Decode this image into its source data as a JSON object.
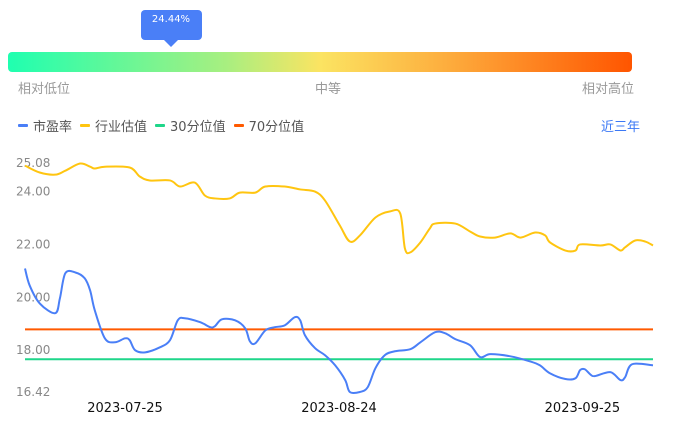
{
  "percentile": {
    "label": "24.44%",
    "value": 24.44,
    "levels": [
      "相对低位",
      "中等",
      "相对高位"
    ]
  },
  "range_button": "近三年",
  "colors": {
    "pe": "#4a7ff7",
    "industry": "#ffc510",
    "p30": "#1fd68a",
    "p70": "#ff5a00"
  },
  "chart_data": {
    "type": "line",
    "legend": [
      "市盈率",
      "行业估值",
      "30分位值",
      "70分位值"
    ],
    "legend_position": "top-left",
    "x_unit": "days since start",
    "xlim": [
      0,
      81
    ],
    "ylim": [
      16.42,
      25.08
    ],
    "y_ticks": [
      "25.08",
      "24.00",
      "22.00",
      "20.00",
      "18.00",
      "16.42"
    ],
    "y_tick_values": [
      25.08,
      24,
      22,
      20,
      18,
      16.42
    ],
    "x_ticks": [
      {
        "label": "2023-07-25",
        "x": 12.9
      },
      {
        "label": "2023-08-24",
        "x": 40.5
      },
      {
        "label": "2023-09-25",
        "x": 71.9
      }
    ],
    "series": [
      {
        "name": "市盈率",
        "points": [
          [
            0,
            21.09
          ],
          [
            0.6,
            20.45
          ],
          [
            1.9,
            19.77
          ],
          [
            3.9,
            19.4
          ],
          [
            4.5,
            19.96
          ],
          [
            5.2,
            20.91
          ],
          [
            6.5,
            20.94
          ],
          [
            7.7,
            20.72
          ],
          [
            8.4,
            20.26
          ],
          [
            9.0,
            19.51
          ],
          [
            10.3,
            18.45
          ],
          [
            11.6,
            18.3
          ],
          [
            12.9,
            18.45
          ],
          [
            13.5,
            18.38
          ],
          [
            14.2,
            18.0
          ],
          [
            15.5,
            17.92
          ],
          [
            17.4,
            18.11
          ],
          [
            18.7,
            18.38
          ],
          [
            19.7,
            19.13
          ],
          [
            20.6,
            19.21
          ],
          [
            22.6,
            19.06
          ],
          [
            23.9,
            18.87
          ],
          [
            24.5,
            18.91
          ],
          [
            25.4,
            19.17
          ],
          [
            27.1,
            19.13
          ],
          [
            28.4,
            18.83
          ],
          [
            29.0,
            18.34
          ],
          [
            29.7,
            18.26
          ],
          [
            31.0,
            18.75
          ],
          [
            32.2,
            18.87
          ],
          [
            33.5,
            18.94
          ],
          [
            34.8,
            19.25
          ],
          [
            35.5,
            19.13
          ],
          [
            36.1,
            18.57
          ],
          [
            37.4,
            18.08
          ],
          [
            38.7,
            17.81
          ],
          [
            40.0,
            17.43
          ],
          [
            41.3,
            16.87
          ],
          [
            41.9,
            16.42
          ],
          [
            43.2,
            16.42
          ],
          [
            44.2,
            16.6
          ],
          [
            45.2,
            17.32
          ],
          [
            46.4,
            17.81
          ],
          [
            47.7,
            17.96
          ],
          [
            49.7,
            18.04
          ],
          [
            51.0,
            18.3
          ],
          [
            52.9,
            18.68
          ],
          [
            54.2,
            18.64
          ],
          [
            55.5,
            18.42
          ],
          [
            57.4,
            18.19
          ],
          [
            58.7,
            17.74
          ],
          [
            60.0,
            17.85
          ],
          [
            62.6,
            17.77
          ],
          [
            65.1,
            17.58
          ],
          [
            66.4,
            17.43
          ],
          [
            67.7,
            17.13
          ],
          [
            69.7,
            16.91
          ],
          [
            71.0,
            16.94
          ],
          [
            71.6,
            17.25
          ],
          [
            72.2,
            17.28
          ],
          [
            72.9,
            17.09
          ],
          [
            73.5,
            17.02
          ],
          [
            75.5,
            17.17
          ],
          [
            76.8,
            16.87
          ],
          [
            77.4,
            16.98
          ],
          [
            78.3,
            17.47
          ],
          [
            81.0,
            17.43
          ]
        ]
      },
      {
        "name": "行业估值",
        "points": [
          [
            0,
            24.98
          ],
          [
            1.9,
            24.72
          ],
          [
            3.9,
            24.64
          ],
          [
            5.2,
            24.79
          ],
          [
            7.1,
            25.06
          ],
          [
            8.4,
            24.94
          ],
          [
            9.0,
            24.87
          ],
          [
            10.3,
            24.94
          ],
          [
            13.5,
            24.91
          ],
          [
            14.8,
            24.57
          ],
          [
            16.1,
            24.42
          ],
          [
            18.7,
            24.42
          ],
          [
            20.0,
            24.19
          ],
          [
            21.9,
            24.34
          ],
          [
            23.2,
            23.85
          ],
          [
            24.5,
            23.74
          ],
          [
            26.4,
            23.74
          ],
          [
            27.7,
            23.96
          ],
          [
            29.7,
            23.96
          ],
          [
            31.0,
            24.19
          ],
          [
            33.5,
            24.19
          ],
          [
            35.5,
            24.08
          ],
          [
            37.4,
            24.0
          ],
          [
            38.7,
            23.66
          ],
          [
            40.6,
            22.72
          ],
          [
            41.9,
            22.11
          ],
          [
            43.2,
            22.34
          ],
          [
            45.2,
            23.02
          ],
          [
            47.1,
            23.25
          ],
          [
            48.4,
            23.17
          ],
          [
            49.0,
            21.85
          ],
          [
            49.7,
            21.7
          ],
          [
            51.0,
            22.08
          ],
          [
            52.2,
            22.6
          ],
          [
            52.9,
            22.79
          ],
          [
            55.5,
            22.79
          ],
          [
            57.4,
            22.49
          ],
          [
            58.7,
            22.3
          ],
          [
            60.6,
            22.26
          ],
          [
            62.6,
            22.42
          ],
          [
            63.9,
            22.26
          ],
          [
            65.8,
            22.45
          ],
          [
            67.1,
            22.34
          ],
          [
            67.7,
            22.08
          ],
          [
            69.7,
            21.77
          ],
          [
            71.0,
            21.77
          ],
          [
            71.6,
            22.0
          ],
          [
            74.2,
            21.96
          ],
          [
            75.5,
            22.0
          ],
          [
            76.8,
            21.77
          ],
          [
            77.4,
            21.89
          ],
          [
            78.7,
            22.15
          ],
          [
            80.0,
            22.11
          ],
          [
            81.0,
            21.96
          ]
        ]
      },
      {
        "name": "30分位值",
        "constant": 17.66
      },
      {
        "name": "70分位值",
        "constant": 18.79
      }
    ]
  }
}
